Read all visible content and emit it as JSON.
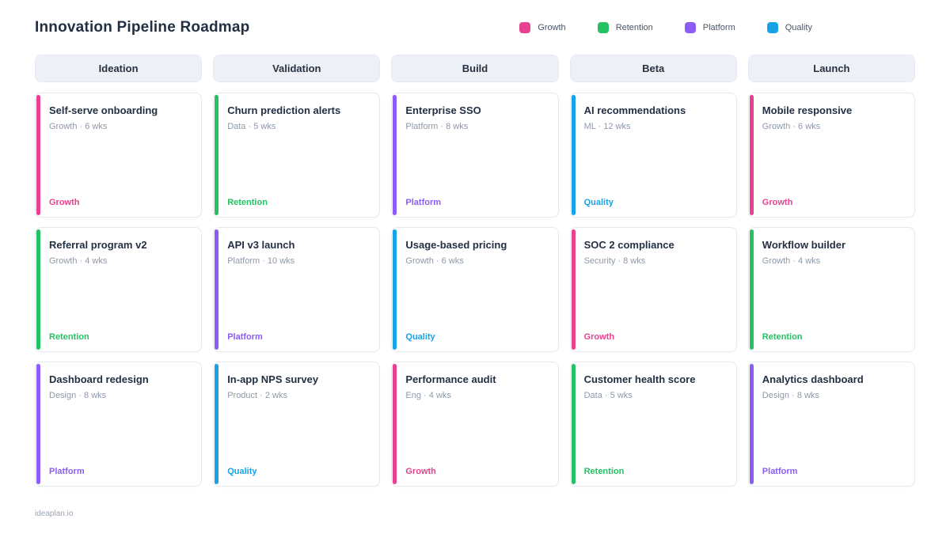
{
  "header": {
    "title": "Innovation Pipeline Roadmap",
    "legend": [
      {
        "label": "Growth",
        "color": "#e8418f"
      },
      {
        "label": "Retention",
        "color": "#26c164"
      },
      {
        "label": "Platform",
        "color": "#8b5cf6"
      },
      {
        "label": "Quality",
        "color": "#18a2e8"
      }
    ]
  },
  "board": {
    "columns": [
      {
        "name": "Ideation",
        "cards": [
          {
            "title": "Self-serve onboarding",
            "meta": "Growth · 6 wks",
            "tag": "Growth",
            "color": "#e8418f"
          },
          {
            "title": "Referral program v2",
            "meta": "Growth · 4 wks",
            "tag": "Retention",
            "color": "#26c164"
          },
          {
            "title": "Dashboard redesign",
            "meta": "Design · 8 wks",
            "tag": "Platform",
            "color": "#8b5cf6"
          }
        ]
      },
      {
        "name": "Validation",
        "cards": [
          {
            "title": "Churn prediction alerts",
            "meta": "Data · 5 wks",
            "tag": "Retention",
            "color": "#26c164"
          },
          {
            "title": "API v3 launch",
            "meta": "Platform · 10 wks",
            "tag": "Platform",
            "color": "#8b5cf6"
          },
          {
            "title": "In-app NPS survey",
            "meta": "Product · 2 wks",
            "tag": "Quality",
            "color": "#18a2e8"
          }
        ]
      },
      {
        "name": "Build",
        "cards": [
          {
            "title": "Enterprise SSO",
            "meta": "Platform · 8 wks",
            "tag": "Platform",
            "color": "#8b5cf6"
          },
          {
            "title": "Usage-based pricing",
            "meta": "Growth · 6 wks",
            "tag": "Quality",
            "color": "#18a2e8"
          },
          {
            "title": "Performance audit",
            "meta": "Eng · 4 wks",
            "tag": "Growth",
            "color": "#e8418f"
          }
        ]
      },
      {
        "name": "Beta",
        "cards": [
          {
            "title": "AI recommendations",
            "meta": "ML · 12 wks",
            "tag": "Quality",
            "color": "#18a2e8"
          },
          {
            "title": "SOC 2 compliance",
            "meta": "Security · 8 wks",
            "tag": "Growth",
            "color": "#e8418f"
          },
          {
            "title": "Customer health score",
            "meta": "Data · 5 wks",
            "tag": "Retention",
            "color": "#26c164"
          }
        ]
      },
      {
        "name": "Launch",
        "cards": [
          {
            "title": "Mobile responsive",
            "meta": "Growth · 6 wks",
            "tag": "Growth",
            "color": "#e8418f"
          },
          {
            "title": "Workflow builder",
            "meta": "Growth · 4 wks",
            "tag": "Retention",
            "color": "#26c164"
          },
          {
            "title": "Analytics dashboard",
            "meta": "Design · 8 wks",
            "tag": "Platform",
            "color": "#8b5cf6"
          }
        ]
      }
    ]
  },
  "footer": {
    "text": "ideaplan.io"
  }
}
